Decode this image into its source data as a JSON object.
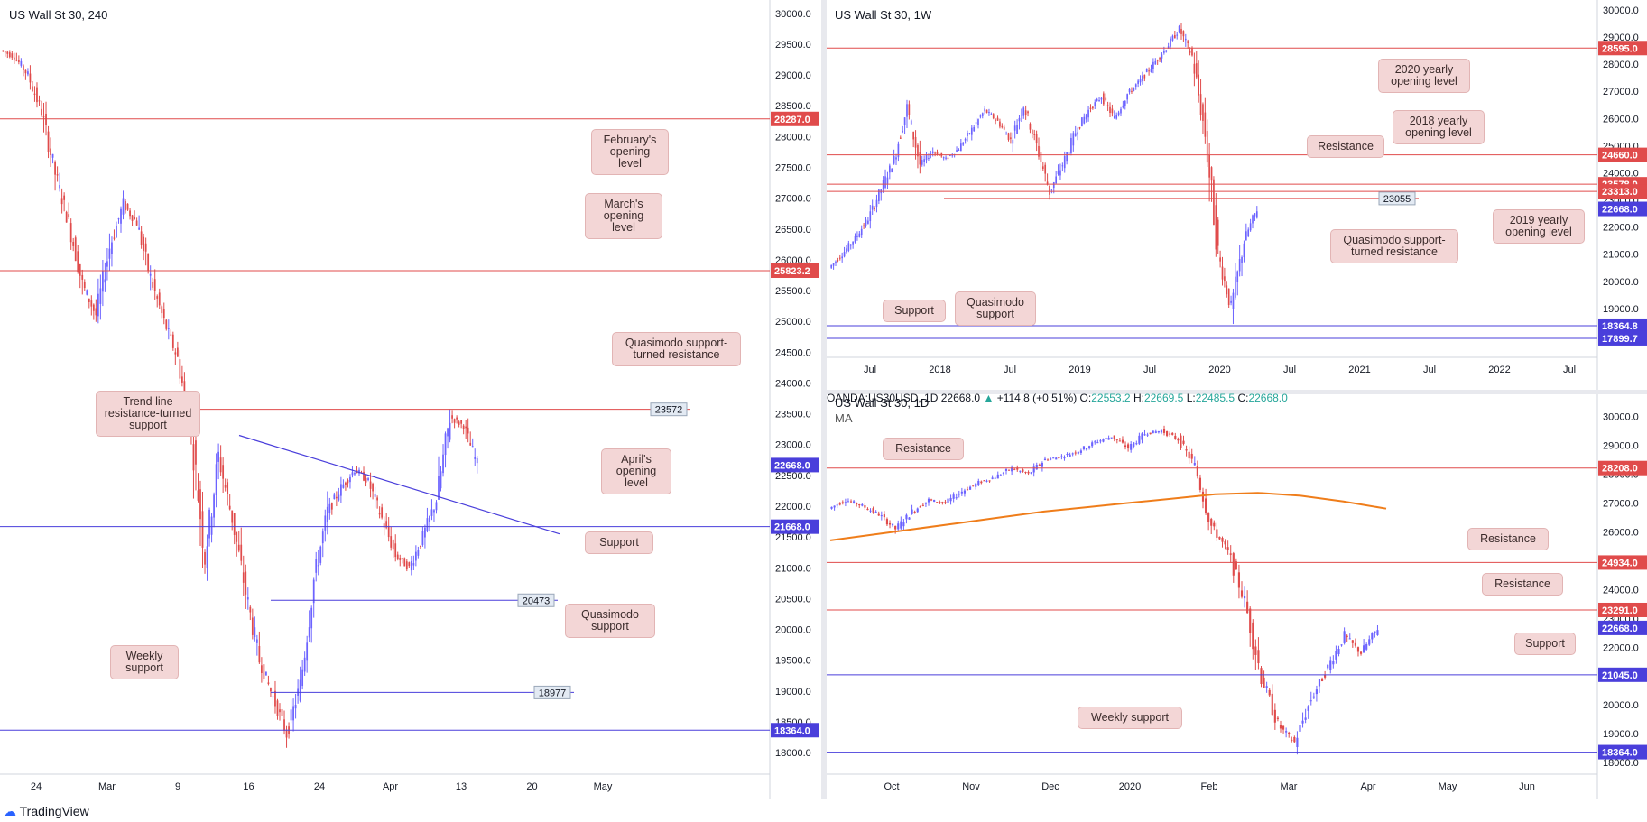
{
  "colors": {
    "up": "#6c63ff",
    "down": "#e04b4b",
    "resistance": "#e04b4b",
    "support": "#4a3fdb",
    "ma": "#ef7d1a",
    "note_bg": "#f3d6d6"
  },
  "footer": {
    "brand": "TradingView"
  },
  "chart_data": [
    {
      "id": "h4",
      "type": "candlestick",
      "title": "US Wall St 30, 240",
      "ylim": [
        17650,
        30100
      ],
      "y_ticks": [
        18000,
        18500,
        19000,
        19500,
        20000,
        20500,
        21000,
        21500,
        22000,
        22500,
        23000,
        23500,
        24000,
        24500,
        25000,
        25500,
        26000,
        26500,
        27000,
        27500,
        28000,
        28500,
        29000,
        29500,
        30000
      ],
      "x_labels": [
        "24",
        "Mar",
        "9",
        "16",
        "24",
        "Apr",
        "13",
        "20",
        "May"
      ],
      "price_tags": [
        {
          "value": 28287.0,
          "label": "28287.0",
          "color": "red"
        },
        {
          "value": 25823.2,
          "label": "25823.2",
          "color": "red"
        },
        {
          "value": 22668.0,
          "label": "22668.0",
          "color": "blue"
        },
        {
          "value": 21668.0,
          "label": "21668.0",
          "color": "blue"
        },
        {
          "value": 18364.0,
          "label": "18364.0",
          "color": "blue"
        }
      ],
      "levels": [
        {
          "value": 23572,
          "label": "23572",
          "color": "red"
        },
        {
          "value": 20473,
          "label": "20473",
          "color": "blue"
        },
        {
          "value": 18977,
          "label": "18977",
          "color": "blue"
        }
      ],
      "trendline": {
        "from": 23150,
        "to": 21550
      },
      "annotations": [
        {
          "text": "February's opening level"
        },
        {
          "text": "March's opening level"
        },
        {
          "text": "Quasimodo support-turned resistance"
        },
        {
          "text": "Trend line resistance-turned support"
        },
        {
          "text": "April's opening level"
        },
        {
          "text": "Support"
        },
        {
          "text": "Quasimodo support"
        },
        {
          "text": "Weekly support"
        }
      ],
      "path": [
        29400,
        29300,
        29000,
        28400,
        27400,
        26600,
        25600,
        25100,
        26200,
        26900,
        26600,
        25700,
        25000,
        24400,
        23200,
        21200,
        22800,
        21800,
        20600,
        19500,
        18900,
        18300,
        19100,
        20800,
        21900,
        22300,
        22600,
        22400,
        21800,
        21200,
        21000,
        21500,
        22100,
        23450,
        23300,
        22668
      ]
    },
    {
      "id": "w1",
      "type": "candlestick",
      "title": "US Wall St 30, 1W",
      "ylim": [
        17200,
        30100
      ],
      "y_ticks": [
        18000,
        19000,
        20000,
        21000,
        22000,
        23000,
        24000,
        25000,
        26000,
        27000,
        28000,
        29000,
        30000
      ],
      "x_labels": [
        "Jul",
        "2018",
        "Jul",
        "2019",
        "Jul",
        "2020",
        "Jul",
        "2021",
        "Jul",
        "2022",
        "Jul"
      ],
      "price_tags": [
        {
          "value": 28595.0,
          "label": "28595.0",
          "color": "red"
        },
        {
          "value": 24660.0,
          "label": "24660.0",
          "color": "red"
        },
        {
          "value": 23578.0,
          "label": "23578.0",
          "color": "red"
        },
        {
          "value": 23313.0,
          "label": "23313.0",
          "color": "red"
        },
        {
          "value": 22668.0,
          "label": "22668.0",
          "color": "blue"
        },
        {
          "value": 18364.8,
          "label": "18364.8",
          "color": "blue"
        },
        {
          "value": 17899.7,
          "label": "17899.7",
          "color": "blue"
        }
      ],
      "levels": [
        {
          "value": 23055,
          "label": "23055",
          "color": "red"
        }
      ],
      "annotations": [
        {
          "text": "2020 yearly opening level"
        },
        {
          "text": "2018 yearly opening level"
        },
        {
          "text": "Resistance"
        },
        {
          "text": "Quasimodo support-turned resistance"
        },
        {
          "text": "2019 yearly opening level"
        },
        {
          "text": "Support"
        },
        {
          "text": "Quasimodo support"
        }
      ],
      "path": [
        20500,
        21000,
        21600,
        22300,
        23400,
        24500,
        26400,
        24300,
        24800,
        24500,
        24900,
        25600,
        26300,
        25900,
        25200,
        26500,
        25000,
        23300,
        24300,
        25500,
        26300,
        26800,
        26000,
        26900,
        27400,
        28000,
        28600,
        29300,
        28300,
        25400,
        21000,
        19000,
        21500,
        22668
      ]
    },
    {
      "id": "d1",
      "type": "candlestick",
      "title": "US Wall St 30, 1D",
      "subtitle": "MA",
      "ohlc": {
        "symbol": "OANDA:US30USD, 1D",
        "last": "22668.0",
        "change": "+114.8 (+0.51%)",
        "o": "22553.2",
        "h": "22669.5",
        "l": "22485.5",
        "c": "22668.0"
      },
      "ylim": [
        17600,
        30200
      ],
      "y_ticks": [
        18000,
        19000,
        20000,
        21000,
        22000,
        23000,
        24000,
        25000,
        26000,
        27000,
        28000,
        29000,
        30000
      ],
      "x_labels": [
        "Oct",
        "Nov",
        "Dec",
        "2020",
        "Feb",
        "Mar",
        "Apr",
        "May",
        "Jun"
      ],
      "price_tags": [
        {
          "value": 28208.0,
          "label": "28208.0",
          "color": "red"
        },
        {
          "value": 24934.0,
          "label": "24934.0",
          "color": "red"
        },
        {
          "value": 23291.0,
          "label": "23291.0",
          "color": "red"
        },
        {
          "value": 22668.0,
          "label": "22668.0",
          "color": "blue"
        },
        {
          "value": 21045.0,
          "label": "21045.0",
          "color": "blue"
        },
        {
          "value": 18364.0,
          "label": "18364.0",
          "color": "blue"
        }
      ],
      "annotations": [
        {
          "text": "Resistance"
        },
        {
          "text": "Resistance"
        },
        {
          "text": "Resistance"
        },
        {
          "text": "Support"
        },
        {
          "text": "Weekly support"
        }
      ],
      "ma": [
        25700,
        25900,
        26100,
        26300,
        26500,
        26700,
        26850,
        27000,
        27150,
        27300,
        27350,
        27250,
        27050,
        26800
      ],
      "path": [
        26800,
        27100,
        26900,
        26600,
        26100,
        26700,
        27100,
        27000,
        27400,
        27700,
        27900,
        28200,
        28000,
        28500,
        28600,
        28800,
        29100,
        29300,
        28900,
        29400,
        29500,
        29200,
        28300,
        26200,
        25300,
        23600,
        21000,
        19300,
        18700,
        20200,
        21300,
        22400,
        21800,
        22668
      ]
    }
  ]
}
